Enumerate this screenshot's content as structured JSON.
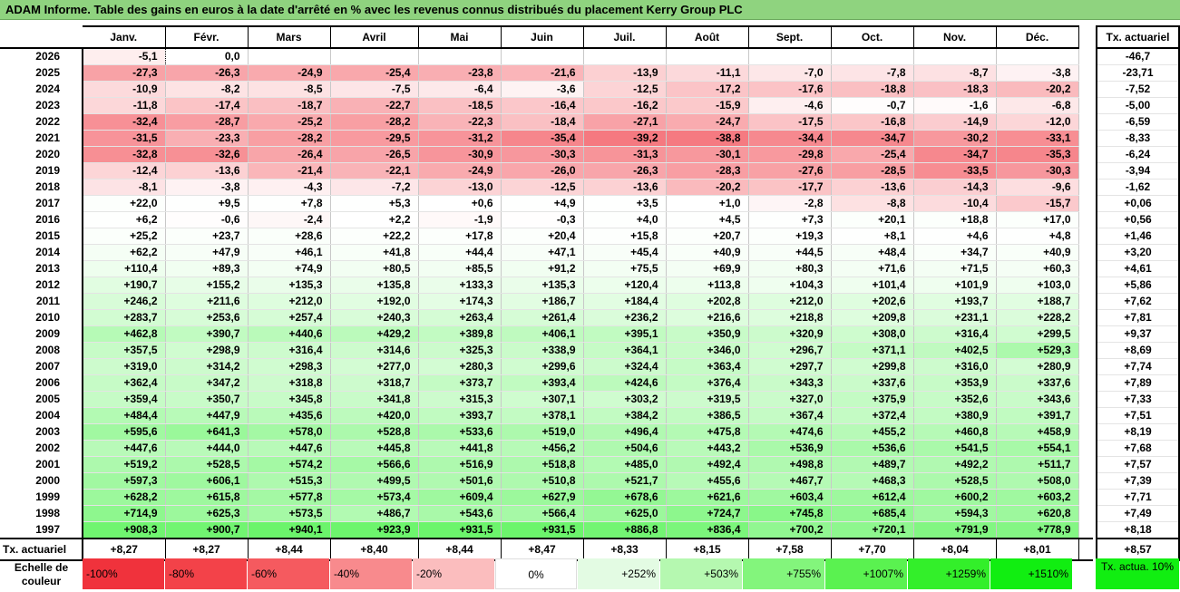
{
  "title": "ADAM Informe. Table des gains en euros à la date d'arrêté en % avec les revenus connus distribués du placement Kerry Group PLC",
  "months": [
    "Janv.",
    "Févr.",
    "Mars",
    "Avril",
    "Mai",
    "Juin",
    "Juil.",
    "Août",
    "Sept.",
    "Oct.",
    "Nov.",
    "Déc."
  ],
  "side_header": "Tx. actuariel",
  "rows": [
    {
      "year": "2026",
      "values": [
        "-5,1",
        "0,0",
        "",
        "",
        "",
        "",
        "",
        "",
        "",
        "",
        "",
        ""
      ],
      "rate": "-46,7"
    },
    {
      "year": "2025",
      "values": [
        "-27,3",
        "-26,3",
        "-24,9",
        "-25,4",
        "-23,8",
        "-21,6",
        "-13,9",
        "-11,1",
        "-7,0",
        "-7,8",
        "-8,7",
        "-3,8"
      ],
      "rate": "-23,71"
    },
    {
      "year": "2024",
      "values": [
        "-10,9",
        "-8,2",
        "-8,5",
        "-7,5",
        "-6,4",
        "-3,6",
        "-12,5",
        "-17,2",
        "-17,6",
        "-18,8",
        "-18,3",
        "-20,2"
      ],
      "rate": "-7,52"
    },
    {
      "year": "2023",
      "values": [
        "-11,8",
        "-17,4",
        "-18,7",
        "-22,7",
        "-18,5",
        "-16,4",
        "-16,2",
        "-15,9",
        "-4,6",
        "-0,7",
        "-1,6",
        "-6,8"
      ],
      "rate": "-5,00"
    },
    {
      "year": "2022",
      "values": [
        "-32,4",
        "-28,7",
        "-25,2",
        "-28,2",
        "-22,3",
        "-18,4",
        "-27,1",
        "-24,7",
        "-17,5",
        "-16,8",
        "-14,9",
        "-12,0"
      ],
      "rate": "-6,59"
    },
    {
      "year": "2021",
      "values": [
        "-31,5",
        "-23,3",
        "-28,2",
        "-29,5",
        "-31,2",
        "-35,4",
        "-39,2",
        "-38,8",
        "-34,4",
        "-34,7",
        "-30,2",
        "-33,1"
      ],
      "rate": "-8,33"
    },
    {
      "year": "2020",
      "values": [
        "-32,8",
        "-32,6",
        "-26,4",
        "-26,5",
        "-30,9",
        "-30,3",
        "-31,3",
        "-30,1",
        "-29,8",
        "-25,4",
        "-34,7",
        "-35,3"
      ],
      "rate": "-6,24"
    },
    {
      "year": "2019",
      "values": [
        "-12,4",
        "-13,6",
        "-21,4",
        "-22,1",
        "-24,9",
        "-26,0",
        "-26,3",
        "-28,3",
        "-27,6",
        "-28,5",
        "-33,5",
        "-30,3"
      ],
      "rate": "-3,94"
    },
    {
      "year": "2018",
      "values": [
        "-8,1",
        "-3,8",
        "-4,3",
        "-7,2",
        "-13,0",
        "-12,5",
        "-13,6",
        "-20,2",
        "-17,7",
        "-13,6",
        "-14,3",
        "-9,6"
      ],
      "rate": "-1,62"
    },
    {
      "year": "2017",
      "values": [
        "+22,0",
        "+9,5",
        "+7,8",
        "+5,3",
        "+0,6",
        "+4,9",
        "+3,5",
        "+1,0",
        "-2,8",
        "-8,8",
        "-10,4",
        "-15,7"
      ],
      "rate": "+0,06"
    },
    {
      "year": "2016",
      "values": [
        "+6,2",
        "-0,6",
        "-2,4",
        "+2,2",
        "-1,9",
        "-0,3",
        "+4,0",
        "+4,5",
        "+7,3",
        "+20,1",
        "+18,8",
        "+17,0"
      ],
      "rate": "+0,56"
    },
    {
      "year": "2015",
      "values": [
        "+25,2",
        "+23,7",
        "+28,6",
        "+22,2",
        "+17,8",
        "+20,4",
        "+15,8",
        "+20,7",
        "+19,3",
        "+8,1",
        "+4,6",
        "+4,8"
      ],
      "rate": "+1,46"
    },
    {
      "year": "2014",
      "values": [
        "+62,2",
        "+47,9",
        "+46,1",
        "+41,8",
        "+44,4",
        "+47,1",
        "+45,4",
        "+40,9",
        "+44,5",
        "+48,4",
        "+34,7",
        "+40,9"
      ],
      "rate": "+3,20"
    },
    {
      "year": "2013",
      "values": [
        "+110,4",
        "+89,3",
        "+74,9",
        "+80,5",
        "+85,5",
        "+91,2",
        "+75,5",
        "+69,9",
        "+80,3",
        "+71,6",
        "+71,5",
        "+60,3"
      ],
      "rate": "+4,61"
    },
    {
      "year": "2012",
      "values": [
        "+190,7",
        "+155,2",
        "+135,3",
        "+135,8",
        "+133,3",
        "+135,3",
        "+120,4",
        "+113,8",
        "+104,3",
        "+101,4",
        "+101,9",
        "+103,0"
      ],
      "rate": "+5,86"
    },
    {
      "year": "2011",
      "values": [
        "+246,2",
        "+211,6",
        "+212,0",
        "+192,0",
        "+174,3",
        "+186,7",
        "+184,4",
        "+202,8",
        "+212,0",
        "+202,6",
        "+193,7",
        "+188,7"
      ],
      "rate": "+7,62"
    },
    {
      "year": "2010",
      "values": [
        "+283,7",
        "+253,6",
        "+257,4",
        "+240,3",
        "+263,4",
        "+261,4",
        "+236,2",
        "+216,6",
        "+218,8",
        "+209,8",
        "+231,1",
        "+228,2"
      ],
      "rate": "+7,81"
    },
    {
      "year": "2009",
      "values": [
        "+462,8",
        "+390,7",
        "+440,6",
        "+429,2",
        "+389,8",
        "+406,1",
        "+395,1",
        "+350,9",
        "+320,9",
        "+308,0",
        "+316,4",
        "+299,5"
      ],
      "rate": "+9,37"
    },
    {
      "year": "2008",
      "values": [
        "+357,5",
        "+298,9",
        "+316,4",
        "+314,6",
        "+325,3",
        "+338,9",
        "+364,1",
        "+346,0",
        "+296,7",
        "+371,1",
        "+402,5",
        "+529,3"
      ],
      "rate": "+8,69"
    },
    {
      "year": "2007",
      "values": [
        "+319,0",
        "+314,2",
        "+298,3",
        "+277,0",
        "+280,3",
        "+299,6",
        "+324,4",
        "+363,4",
        "+297,7",
        "+299,8",
        "+316,0",
        "+280,9"
      ],
      "rate": "+7,74"
    },
    {
      "year": "2006",
      "values": [
        "+362,4",
        "+347,2",
        "+318,8",
        "+318,7",
        "+373,7",
        "+393,4",
        "+424,6",
        "+376,4",
        "+343,3",
        "+337,6",
        "+353,9",
        "+337,6"
      ],
      "rate": "+7,89"
    },
    {
      "year": "2005",
      "values": [
        "+359,4",
        "+350,7",
        "+345,8",
        "+341,8",
        "+315,3",
        "+307,1",
        "+303,2",
        "+319,5",
        "+327,0",
        "+375,9",
        "+352,6",
        "+343,6"
      ],
      "rate": "+7,33"
    },
    {
      "year": "2004",
      "values": [
        "+484,4",
        "+447,9",
        "+435,6",
        "+420,0",
        "+393,7",
        "+378,1",
        "+384,2",
        "+386,5",
        "+367,4",
        "+372,4",
        "+380,9",
        "+391,7"
      ],
      "rate": "+7,51"
    },
    {
      "year": "2003",
      "values": [
        "+595,6",
        "+641,3",
        "+578,0",
        "+528,8",
        "+533,6",
        "+519,0",
        "+496,4",
        "+475,8",
        "+474,6",
        "+455,2",
        "+460,8",
        "+458,9"
      ],
      "rate": "+8,19"
    },
    {
      "year": "2002",
      "values": [
        "+447,6",
        "+444,0",
        "+447,6",
        "+445,8",
        "+441,8",
        "+456,2",
        "+504,6",
        "+443,2",
        "+536,9",
        "+536,6",
        "+541,5",
        "+554,1"
      ],
      "rate": "+7,68"
    },
    {
      "year": "2001",
      "values": [
        "+519,2",
        "+528,5",
        "+574,2",
        "+566,6",
        "+516,9",
        "+518,8",
        "+485,0",
        "+492,4",
        "+498,8",
        "+489,7",
        "+492,2",
        "+511,7"
      ],
      "rate": "+7,57"
    },
    {
      "year": "2000",
      "values": [
        "+597,3",
        "+606,1",
        "+515,3",
        "+499,5",
        "+501,6",
        "+510,8",
        "+521,7",
        "+455,6",
        "+467,7",
        "+468,3",
        "+528,5",
        "+508,0"
      ],
      "rate": "+7,39"
    },
    {
      "year": "1999",
      "values": [
        "+628,2",
        "+615,8",
        "+577,8",
        "+573,4",
        "+609,4",
        "+627,9",
        "+678,6",
        "+621,6",
        "+603,4",
        "+612,4",
        "+600,2",
        "+603,2"
      ],
      "rate": "+7,71"
    },
    {
      "year": "1998",
      "values": [
        "+714,9",
        "+625,3",
        "+573,5",
        "+486,7",
        "+543,6",
        "+566,4",
        "+625,0",
        "+724,7",
        "+745,8",
        "+685,4",
        "+594,3",
        "+620,8"
      ],
      "rate": "+7,49"
    },
    {
      "year": "1997",
      "values": [
        "+908,3",
        "+900,7",
        "+940,1",
        "+923,9",
        "+931,5",
        "+931,5",
        "+886,8",
        "+836,4",
        "+700,2",
        "+720,1",
        "+791,9",
        "+778,9"
      ],
      "rate": "+8,18"
    }
  ],
  "footer": {
    "label": "Tx. actuariel",
    "values": [
      "+8,27",
      "+8,27",
      "+8,44",
      "+8,40",
      "+8,44",
      "+8,47",
      "+8,33",
      "+8,15",
      "+7,58",
      "+7,70",
      "+8,04",
      "+8,01"
    ],
    "rate": "+8,57"
  },
  "legend": {
    "label": "Echelle de couleur",
    "swatches": [
      {
        "text": "-100%",
        "color": "#f0323c",
        "align": "left"
      },
      {
        "text": "-80%",
        "color": "#f34249",
        "align": "left"
      },
      {
        "text": "-60%",
        "color": "#f55a5f",
        "align": "left"
      },
      {
        "text": "-40%",
        "color": "#f88a8d",
        "align": "left"
      },
      {
        "text": "-20%",
        "color": "#fbbdbe",
        "align": "left"
      },
      {
        "text": "0%",
        "color": "#ffffff",
        "align": "center"
      },
      {
        "text": "+252%",
        "color": "#e3fbe3",
        "align": "right"
      },
      {
        "text": "+503%",
        "color": "#b5f8b0",
        "align": "right"
      },
      {
        "text": "+755%",
        "color": "#83f57c",
        "align": "right"
      },
      {
        "text": "+1007%",
        "color": "#5af250",
        "align": "right"
      },
      {
        "text": "+1259%",
        "color": "#33ef2a",
        "align": "right"
      },
      {
        "text": "+1510%",
        "color": "#11ee11",
        "align": "right"
      }
    ],
    "side": "Tx. actua. 10%"
  },
  "colors": {
    "negative_max": "#f0323c",
    "neutral": "#ffffff",
    "positive_max": "#11ee11",
    "banner": "#8fd37f"
  }
}
